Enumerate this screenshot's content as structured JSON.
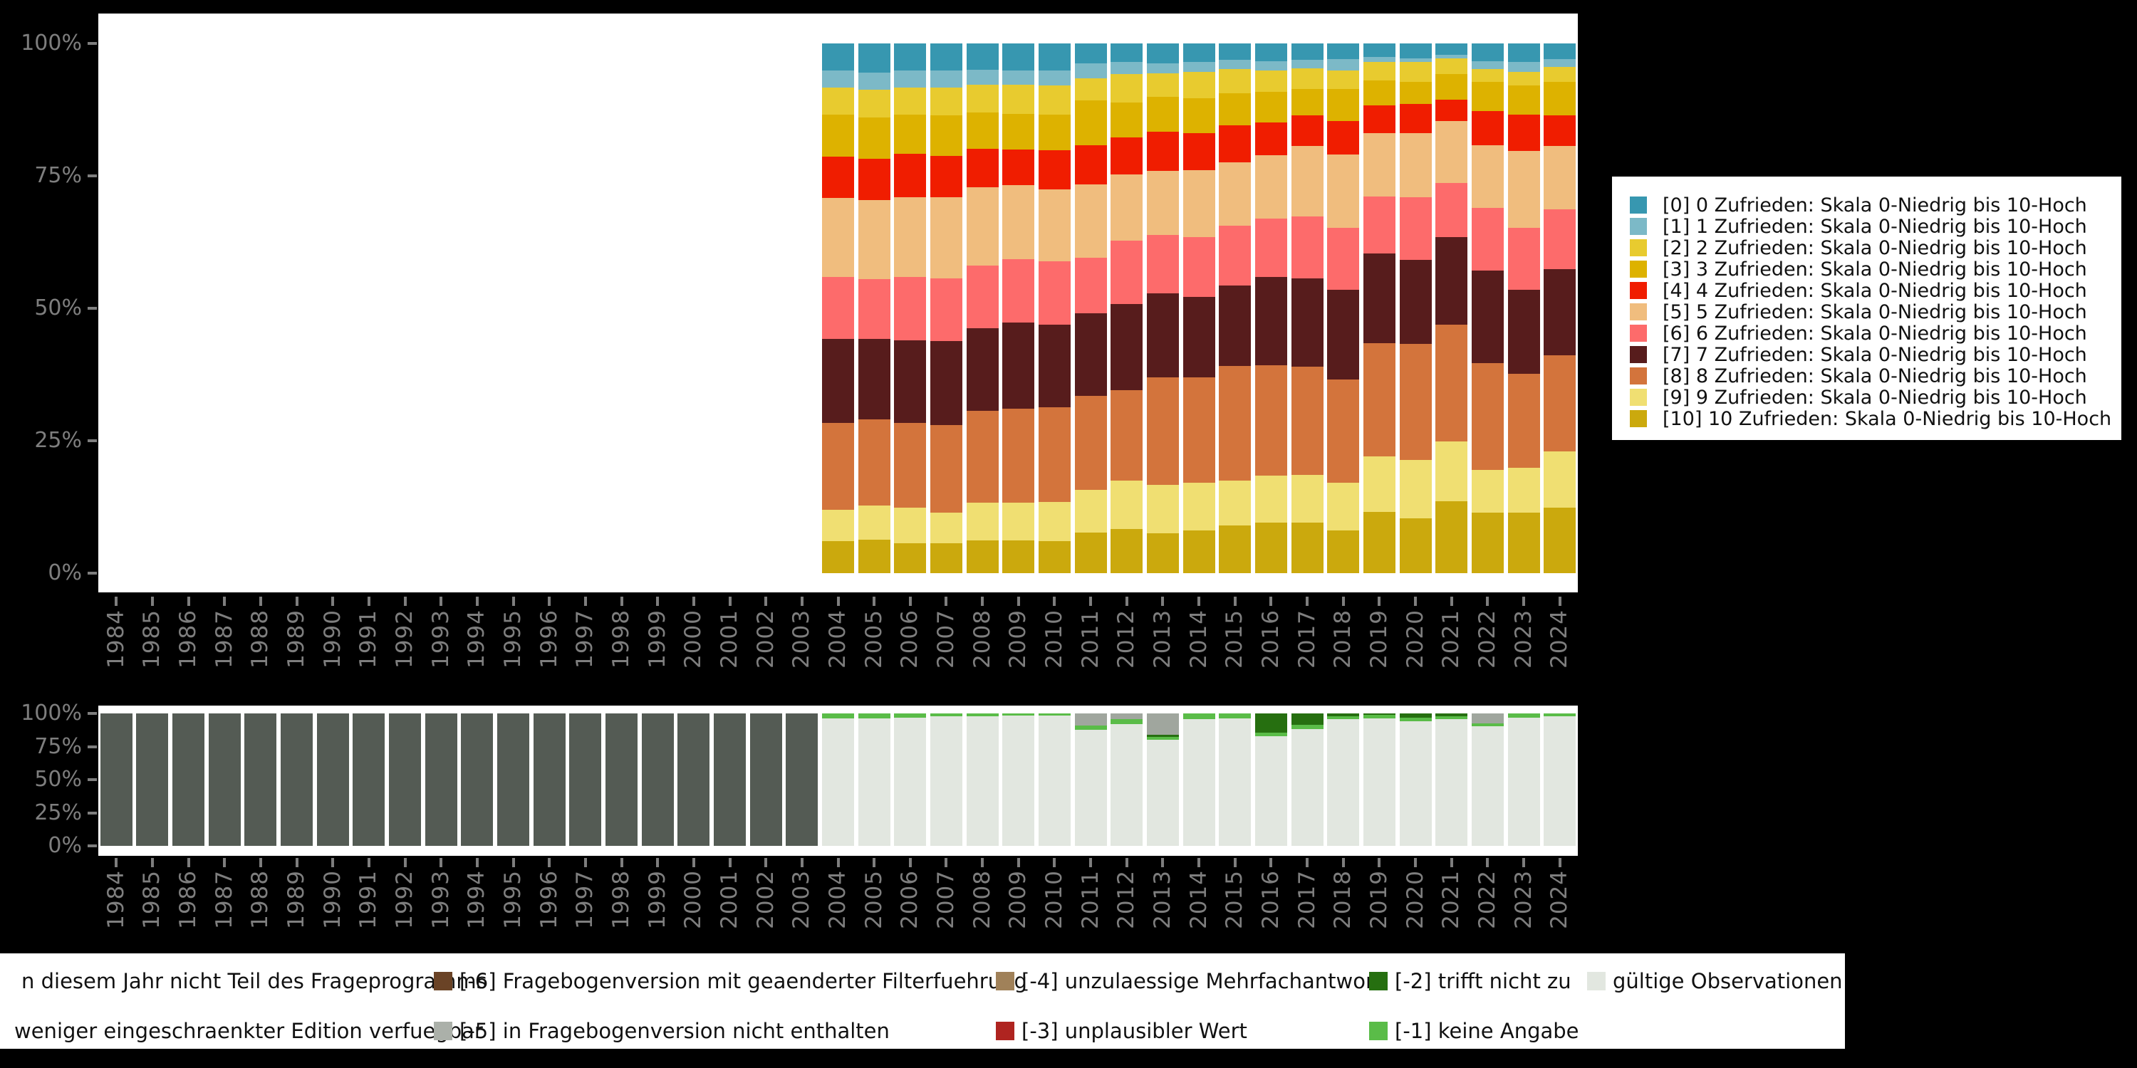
{
  "page": {
    "background": "#000000",
    "plot_background": "#ffffff",
    "axis_text_color": "#7e7e7e"
  },
  "axes": {
    "y_ticks": [
      "100%",
      "75%",
      "50%",
      "25%",
      "0%"
    ],
    "years": [
      1984,
      1985,
      1986,
      1987,
      1988,
      1989,
      1990,
      1991,
      1992,
      1993,
      1994,
      1995,
      1996,
      1997,
      1998,
      1999,
      2000,
      2001,
      2002,
      2003,
      2004,
      2005,
      2006,
      2007,
      2008,
      2009,
      2010,
      2011,
      2012,
      2013,
      2014,
      2015,
      2016,
      2017,
      2018,
      2019,
      2020,
      2021,
      2022,
      2023,
      2024
    ]
  },
  "top_legend": {
    "items": [
      {
        "label": "[0] 0 Zufrieden: Skala 0-Niedrig bis 10-Hoch",
        "color": "#3797B0"
      },
      {
        "label": "[1] 1 Zufrieden: Skala 0-Niedrig bis 10-Hoch",
        "color": "#7CB9C7"
      },
      {
        "label": "[2] 2 Zufrieden: Skala 0-Niedrig bis 10-Hoch",
        "color": "#E8CB2F"
      },
      {
        "label": "[3] 3 Zufrieden: Skala 0-Niedrig bis 10-Hoch",
        "color": "#DDB200"
      },
      {
        "label": "[4] 4 Zufrieden: Skala 0-Niedrig bis 10-Hoch",
        "color": "#F01D00"
      },
      {
        "label": "[5] 5 Zufrieden: Skala 0-Niedrig bis 10-Hoch",
        "color": "#F0BD7E"
      },
      {
        "label": "[6] 6 Zufrieden: Skala 0-Niedrig bis 10-Hoch",
        "color": "#FD6B6B"
      },
      {
        "label": "[7] 7 Zufrieden: Skala 0-Niedrig bis 10-Hoch",
        "color": "#571C1C"
      },
      {
        "label": "[8] 8 Zufrieden: Skala 0-Niedrig bis 10-Hoch",
        "color": "#D3743C"
      },
      {
        "label": "[9] 9 Zufrieden: Skala 0-Niedrig bis 10-Hoch",
        "color": "#F0DF72"
      },
      {
        "label": "[10] 10 Zufrieden: Skala 0-Niedrig bis 10-Hoch",
        "color": "#CBA90D"
      }
    ]
  },
  "bottom_legend": {
    "items": [
      {
        "label": "n diesem Jahr nicht Teil des Frageprogramms",
        "color": "#545B54",
        "swatch_visible": false,
        "col": 1,
        "row": 1
      },
      {
        "label": "weniger eingeschraenkter Edition verfuegbar",
        "color": "#ABB0A9",
        "swatch_visible": false,
        "col": 1,
        "row": 2
      },
      {
        "label": "[-6] Fragebogenversion mit geaenderter Filterfuehrung",
        "color": "#6A4326",
        "swatch_visible": true,
        "col": 2,
        "row": 1
      },
      {
        "label": "[-5] in Fragebogenversion nicht enthalten",
        "color": "#ABB0A9",
        "swatch_visible": true,
        "col": 2,
        "row": 2
      },
      {
        "label": "[-4] unzulaessige Mehrfachantwort",
        "color": "#A08159",
        "swatch_visible": true,
        "col": 3,
        "row": 1
      },
      {
        "label": "[-3] unplausibler Wert",
        "color": "#AF2420",
        "swatch_visible": true,
        "col": 3,
        "row": 2
      },
      {
        "label": "[-2] trifft nicht zu",
        "color": "#266F10",
        "swatch_visible": true,
        "col": 4,
        "row": 1
      },
      {
        "label": "[-1] keine Angabe",
        "color": "#5ABC48",
        "swatch_visible": true,
        "col": 4,
        "row": 2
      },
      {
        "label": "gültige Observationen",
        "color": "#E2E7E0",
        "swatch_visible": true,
        "col": 5,
        "row": 1
      }
    ]
  },
  "chart_data": [
    {
      "type": "bar",
      "stacked": true,
      "title": "",
      "x": [
        2004,
        2005,
        2006,
        2007,
        2008,
        2009,
        2010,
        2011,
        2012,
        2013,
        2014,
        2015,
        2016,
        2017,
        2018,
        2019,
        2020,
        2021,
        2022,
        2023,
        2024
      ],
      "ylim": [
        0,
        100
      ],
      "y_ticks": [
        "100%",
        "75%",
        "50%",
        "25%",
        "0%"
      ],
      "grid": false,
      "legend_position": "right",
      "stack_note": "series listed top-to-bottom as drawn; [10] is the bottom segment, [0] the top segment",
      "series": [
        {
          "name": "[0] 0 Zufrieden: Skala 0-Niedrig bis 10-Hoch",
          "color": "#3797B0",
          "values": [
            5.1,
            5.5,
            5.1,
            5.1,
            5.0,
            5.1,
            5.1,
            3.8,
            3.5,
            3.8,
            3.5,
            3.1,
            3.3,
            3.1,
            3.0,
            2.6,
            2.8,
            2.1,
            3.3,
            3.5,
            3.0
          ]
        },
        {
          "name": "[1] 1 Zufrieden: Skala 0-Niedrig bis 10-Hoch",
          "color": "#7CB9C7",
          "values": [
            3.3,
            3.2,
            3.2,
            3.2,
            2.8,
            2.7,
            2.8,
            2.8,
            2.3,
            1.8,
            1.9,
            1.8,
            1.8,
            1.6,
            2.1,
            0.9,
            0.7,
            0.7,
            1.6,
            1.9,
            1.4
          ]
        },
        {
          "name": "[2] 2 Zufrieden: Skala 0-Niedrig bis 10-Hoch",
          "color": "#E8CB2F",
          "values": [
            5.1,
            5.3,
            5.2,
            5.3,
            5.2,
            5.5,
            5.5,
            4.1,
            5.3,
            4.5,
            5.0,
            4.5,
            4.1,
            3.9,
            3.5,
            3.5,
            3.7,
            3.0,
            2.4,
            2.5,
            2.8
          ]
        },
        {
          "name": "[3] 3 Zufrieden: Skala 0-Niedrig bis 10-Hoch",
          "color": "#DDB200",
          "values": [
            7.9,
            7.8,
            7.4,
            7.6,
            6.9,
            6.7,
            6.7,
            8.5,
            6.7,
            6.6,
            6.6,
            6.1,
            5.7,
            5.0,
            6.0,
            4.7,
            4.2,
            4.8,
            5.5,
            5.5,
            6.4
          ]
        },
        {
          "name": "[4] 4 Zufrieden: Skala 0-Niedrig bis 10-Hoch",
          "color": "#F01D00",
          "values": [
            7.8,
            7.8,
            8.2,
            7.8,
            7.2,
            6.7,
            7.5,
            7.4,
            6.9,
            7.3,
            6.9,
            6.9,
            6.2,
            5.8,
            6.4,
            5.2,
            5.5,
            4.0,
            6.4,
            6.9,
            5.7
          ]
        },
        {
          "name": "[5] 5 Zufrieden: Skala 0-Niedrig bis 10-Hoch",
          "color": "#F0BD7E",
          "values": [
            14.9,
            14.9,
            15.0,
            15.4,
            14.9,
            14.0,
            13.5,
            13.8,
            12.5,
            12.2,
            12.7,
            12.0,
            12.0,
            13.3,
            13.8,
            12.0,
            12.2,
            11.7,
            11.9,
            14.5,
            12.0
          ]
        },
        {
          "name": "[6] 6 Zufrieden: Skala 0-Niedrig bis 10-Hoch",
          "color": "#FD6B6B",
          "values": [
            11.7,
            11.3,
            11.9,
            11.8,
            11.8,
            12.0,
            12.0,
            10.6,
            12.0,
            11.0,
            11.3,
            11.3,
            11.0,
            11.7,
            11.7,
            10.8,
            11.7,
            10.3,
            11.8,
            11.7,
            11.3
          ]
        },
        {
          "name": "[7] 7 Zufrieden: Skala 0-Niedrig bis 10-Hoch",
          "color": "#571C1C",
          "values": [
            15.9,
            15.2,
            15.6,
            15.8,
            15.6,
            16.3,
            15.6,
            15.6,
            16.3,
            15.8,
            15.1,
            15.2,
            16.6,
            16.6,
            17.0,
            16.9,
            15.9,
            16.5,
            17.4,
            15.9,
            16.3
          ]
        },
        {
          "name": "[8] 8 Zufrieden: Skala 0-Niedrig bis 10-Hoch",
          "color": "#D3743C",
          "values": [
            16.3,
            16.3,
            16.1,
            16.6,
            17.3,
            17.7,
            17.8,
            17.7,
            17.0,
            20.3,
            20.0,
            21.6,
            20.9,
            20.5,
            19.5,
            21.4,
            22.0,
            22.1,
            20.2,
            17.7,
            18.1
          ]
        },
        {
          "name": "[9] 9 Zufrieden: Skala 0-Niedrig bis 10-Hoch",
          "color": "#F0DF72",
          "values": [
            6.0,
            6.4,
            6.6,
            5.7,
            7.1,
            7.1,
            7.4,
            8.1,
            9.2,
            9.2,
            8.9,
            8.5,
            8.9,
            8.9,
            8.9,
            10.5,
            11.0,
            11.3,
            8.1,
            8.5,
            10.6
          ]
        },
        {
          "name": "[10] 10 Zufrieden: Skala 0-Niedrig bis 10-Hoch",
          "color": "#CBA90D",
          "values": [
            6.0,
            6.3,
            5.7,
            5.7,
            6.2,
            6.2,
            6.1,
            7.6,
            8.3,
            7.5,
            8.1,
            9.0,
            9.5,
            9.6,
            8.1,
            11.5,
            10.3,
            13.5,
            11.4,
            11.4,
            12.4
          ]
        }
      ]
    },
    {
      "type": "bar",
      "stacked": true,
      "title": "",
      "x": [
        1984,
        1985,
        1986,
        1987,
        1988,
        1989,
        1990,
        1991,
        1992,
        1993,
        1994,
        1995,
        1996,
        1997,
        1998,
        1999,
        2000,
        2001,
        2002,
        2003,
        2004,
        2005,
        2006,
        2007,
        2008,
        2009,
        2010,
        2011,
        2012,
        2013,
        2014,
        2015,
        2016,
        2017,
        2018,
        2019,
        2020,
        2021,
        2022,
        2023,
        2024
      ],
      "ylim": [
        0,
        100
      ],
      "y_ticks": [
        "100%",
        "75%",
        "50%",
        "25%",
        "0%"
      ],
      "grid": false,
      "stack_note": "series listed top-to-bottom as drawn; gültige Observationen is the bottom segment",
      "series": [
        {
          "name": "in diesem Jahr nicht Teil des Frageprogramms",
          "color": "#545B54",
          "values": [
            100,
            100,
            100,
            100,
            100,
            100,
            100,
            100,
            100,
            100,
            100,
            100,
            100,
            100,
            100,
            100,
            100,
            100,
            100,
            100,
            0,
            0,
            0,
            0,
            0,
            0,
            0,
            0,
            0,
            0,
            0,
            0,
            0,
            0,
            0,
            0,
            0,
            0,
            0,
            0,
            0
          ]
        },
        {
          "name": "[-5] in Fragebogenversion nicht enthalten",
          "color": "#A0A69E",
          "values": [
            0,
            0,
            0,
            0,
            0,
            0,
            0,
            0,
            0,
            0,
            0,
            0,
            0,
            0,
            0,
            0,
            0,
            0,
            0,
            0,
            0,
            0,
            0,
            0,
            0,
            0,
            0,
            9.3,
            4.5,
            16.1,
            0,
            0,
            0,
            0,
            0,
            0,
            0,
            0,
            7.7,
            0,
            0
          ]
        },
        {
          "name": "[-2] trifft nicht zu",
          "color": "#266F10",
          "values": [
            0,
            0,
            0,
            0,
            0,
            0,
            0,
            0,
            0,
            0,
            0,
            0,
            0,
            0,
            0,
            0,
            0,
            0,
            0,
            0,
            0,
            0,
            0,
            0,
            0,
            0,
            0,
            0,
            0,
            1.4,
            0,
            0,
            14.5,
            8.4,
            2.2,
            0.9,
            3.0,
            2.3,
            0,
            0,
            0
          ]
        },
        {
          "name": "[-1] keine Angabe",
          "color": "#5ABC48",
          "values": [
            0,
            0,
            0,
            0,
            0,
            0,
            0,
            0,
            0,
            0,
            0,
            0,
            0,
            0,
            0,
            0,
            0,
            0,
            0,
            0,
            3.9,
            3.5,
            3.0,
            2.2,
            2.2,
            1.6,
            1.4,
            3.2,
            3.6,
            2.5,
            4.3,
            4.0,
            2.7,
            3.6,
            2.3,
            2.7,
            2.9,
            2.2,
            1.8,
            3.0,
            2.3
          ]
        },
        {
          "name": "gültige Observationen",
          "color": "#E2E7E0",
          "values": [
            0,
            0,
            0,
            0,
            0,
            0,
            0,
            0,
            0,
            0,
            0,
            0,
            0,
            0,
            0,
            0,
            0,
            0,
            0,
            0,
            96.1,
            96.5,
            97.0,
            97.8,
            97.8,
            98.4,
            98.6,
            87.5,
            91.9,
            80.0,
            95.7,
            96.0,
            82.8,
            88.0,
            95.5,
            96.4,
            94.1,
            95.5,
            90.5,
            97.0,
            97.7
          ]
        }
      ]
    }
  ]
}
